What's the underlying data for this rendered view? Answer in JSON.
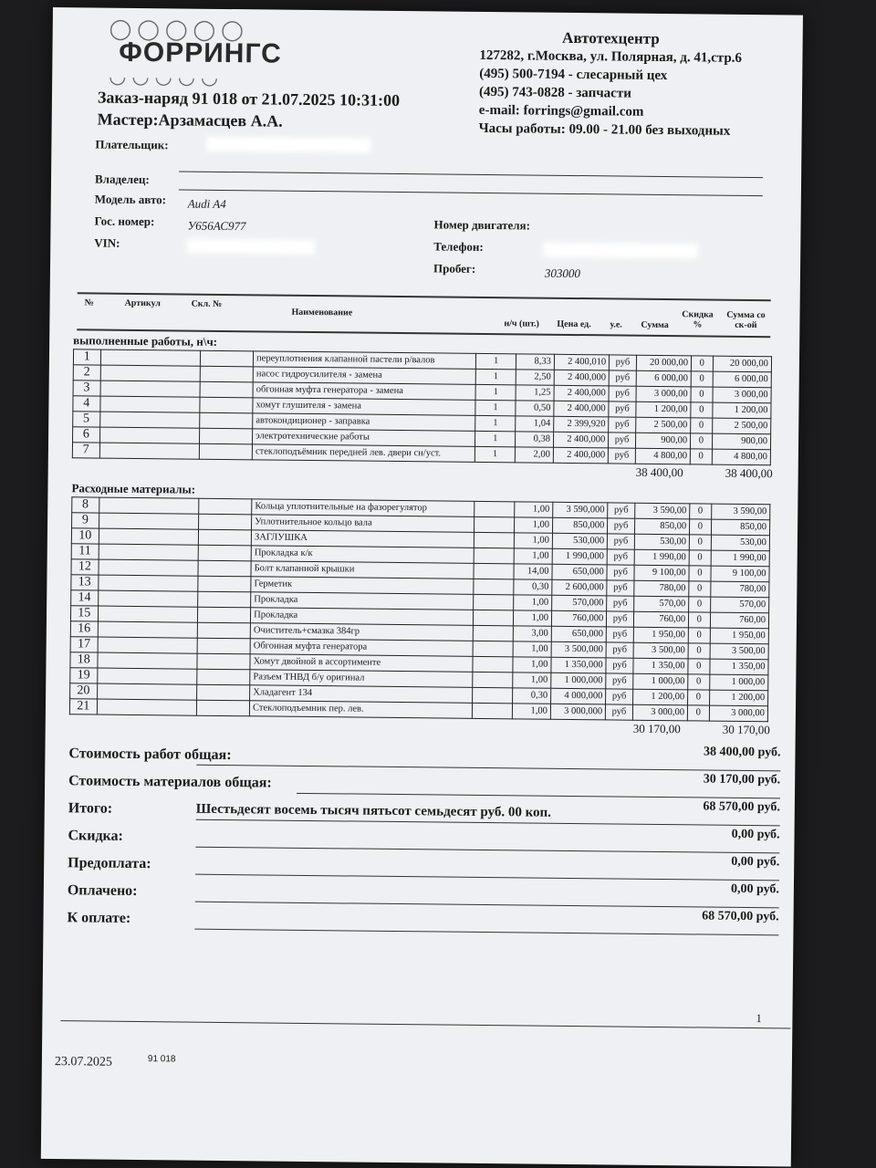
{
  "logo": "ФОРРИНГС",
  "company": {
    "name": "Автотехцентр",
    "address": "127282, г.Москва, ул. Полярная, д. 41,стр.6",
    "phone1": "(495) 500-7194 - слесарный цех",
    "phone2": "(495) 743-0828 - запчасти",
    "email": "e-mail: forrings@gmail.com",
    "hours": "Часы работы: 09.00 - 21.00 без выходных"
  },
  "order": {
    "title": "Заказ-наряд 91 018 от 21.07.2025  10:31:00",
    "master": "Мастер:Арзамасцев А.А."
  },
  "fields": {
    "payer_label": "Плательщик:",
    "owner_label": "Владелец:",
    "model_label": "Модель авто:",
    "model": "Audi A4",
    "plate_label": "Гос. номер:",
    "plate": "У656АС977",
    "vin_label": "VIN:",
    "engine_label": "Номер двигателя:",
    "phone_label": "Телефон:",
    "mileage_label": "Пробег:",
    "mileage": "303000"
  },
  "headers": {
    "num": "№",
    "article": "Артикул",
    "stock": "Скл. №",
    "name": "Наименование",
    "qty": "н/ч (шт.)",
    "price": "Цена ед.",
    "unit": "у.е.",
    "sum": "Сумма",
    "discount": "Скидка %",
    "sum_disc": "Сумма со ск-ой"
  },
  "works": {
    "title": "выполненные работы, н\\ч:",
    "rows": [
      {
        "n": "1",
        "name": "переуплотнения клапанной пастели р/валов",
        "k": "1",
        "qty": "8,33",
        "price": "2 400,010",
        "unit": "руб",
        "sum": "20 000,00",
        "disc": "0",
        "total": "20 000,00"
      },
      {
        "n": "2",
        "name": "насос гидроусилителя - замена",
        "k": "1",
        "qty": "2,50",
        "price": "2 400,000",
        "unit": "руб",
        "sum": "6 000,00",
        "disc": "0",
        "total": "6 000,00"
      },
      {
        "n": "3",
        "name": "обгонная муфта генератора - замена",
        "k": "1",
        "qty": "1,25",
        "price": "2 400,000",
        "unit": "руб",
        "sum": "3 000,00",
        "disc": "0",
        "total": "3 000,00"
      },
      {
        "n": "4",
        "name": "хомут глушителя - замена",
        "k": "1",
        "qty": "0,50",
        "price": "2 400,000",
        "unit": "руб",
        "sum": "1 200,00",
        "disc": "0",
        "total": "1 200,00"
      },
      {
        "n": "5",
        "name": "автокондиционер - заправка",
        "k": "1",
        "qty": "1,04",
        "price": "2 399,920",
        "unit": "руб",
        "sum": "2 500,00",
        "disc": "0",
        "total": "2 500,00"
      },
      {
        "n": "6",
        "name": "электротехнические работы",
        "k": "1",
        "qty": "0,38",
        "price": "2 400,000",
        "unit": "руб",
        "sum": "900,00",
        "disc": "0",
        "total": "900,00"
      },
      {
        "n": "7",
        "name": "стеклоподъёмник передней лев. двери сн/уст.",
        "k": "1",
        "qty": "2,00",
        "price": "2 400,000",
        "unit": "руб",
        "sum": "4 800,00",
        "disc": "0",
        "total": "4 800,00"
      }
    ],
    "total_sum": "38 400,00",
    "total_disc": "38 400,00"
  },
  "materials": {
    "title": "Расходные материалы:",
    "rows": [
      {
        "n": "8",
        "name": "Кольца уплотнительные на фазорегулятор",
        "qty": "1,00",
        "price": "3 590,000",
        "unit": "руб",
        "sum": "3 590,00",
        "disc": "0",
        "total": "3 590,00"
      },
      {
        "n": "9",
        "name": "Уплотнительное кольцо вала",
        "qty": "1,00",
        "price": "850,000",
        "unit": "руб",
        "sum": "850,00",
        "disc": "0",
        "total": "850,00"
      },
      {
        "n": "10",
        "name": "ЗАГЛУШКА",
        "qty": "1,00",
        "price": "530,000",
        "unit": "руб",
        "sum": "530,00",
        "disc": "0",
        "total": "530,00"
      },
      {
        "n": "11",
        "name": "Прокладка к/к",
        "qty": "1,00",
        "price": "1 990,000",
        "unit": "руб",
        "sum": "1 990,00",
        "disc": "0",
        "total": "1 990,00"
      },
      {
        "n": "12",
        "name": "Болт клапанной крышки",
        "qty": "14,00",
        "price": "650,000",
        "unit": "руб",
        "sum": "9 100,00",
        "disc": "0",
        "total": "9 100,00"
      },
      {
        "n": "13",
        "name": "Герметик",
        "qty": "0,30",
        "price": "2 600,000",
        "unit": "руб",
        "sum": "780,00",
        "disc": "0",
        "total": "780,00"
      },
      {
        "n": "14",
        "name": "Прокладка",
        "qty": "1,00",
        "price": "570,000",
        "unit": "руб",
        "sum": "570,00",
        "disc": "0",
        "total": "570,00"
      },
      {
        "n": "15",
        "name": "Прокладка",
        "qty": "1,00",
        "price": "760,000",
        "unit": "руб",
        "sum": "760,00",
        "disc": "0",
        "total": "760,00"
      },
      {
        "n": "16",
        "name": "Очиститель+смазка 384гр",
        "qty": "3,00",
        "price": "650,000",
        "unit": "руб",
        "sum": "1 950,00",
        "disc": "0",
        "total": "1 950,00"
      },
      {
        "n": "17",
        "name": "Обгонная муфта генератора",
        "qty": "1,00",
        "price": "3 500,000",
        "unit": "руб",
        "sum": "3 500,00",
        "disc": "0",
        "total": "3 500,00"
      },
      {
        "n": "18",
        "name": "Хомут двойной в ассортименте",
        "qty": "1,00",
        "price": "1 350,000",
        "unit": "руб",
        "sum": "1 350,00",
        "disc": "0",
        "total": "1 350,00"
      },
      {
        "n": "19",
        "name": "Разъем ТНВД б/у оригинал",
        "qty": "1,00",
        "price": "1 000,000",
        "unit": "руб",
        "sum": "1 000,00",
        "disc": "0",
        "total": "1 000,00"
      },
      {
        "n": "20",
        "name": "Хладагент 134",
        "qty": "0,30",
        "price": "4 000,000",
        "unit": "руб",
        "sum": "1 200,00",
        "disc": "0",
        "total": "1 200,00"
      },
      {
        "n": "21",
        "name": "Стеклоподъемник пер. лев.",
        "qty": "1,00",
        "price": "3 000,000",
        "unit": "руб",
        "sum": "3 000,00",
        "disc": "0",
        "total": "3 000,00"
      }
    ],
    "total_sum": "30 170,00",
    "total_disc": "30 170,00"
  },
  "summary": [
    {
      "label": "Стоимость работ общая:",
      "value": "38 400,00 руб."
    },
    {
      "label": "Стоимость материалов общая:",
      "value": "30 170,00 руб."
    },
    {
      "label": "Итого:",
      "value": "68 570,00 руб.",
      "words": "Шестьдесят восемь тысяч пятьсот семьдесят  руб. 00 коп."
    },
    {
      "label": "Скидка:",
      "value": "0,00 руб."
    },
    {
      "label": "Предоплата:",
      "value": "0,00 руб."
    },
    {
      "label": "Оплачено:",
      "value": "0,00 руб."
    },
    {
      "label": "К оплате:",
      "value": "68 570,00 руб."
    }
  ],
  "footer": {
    "page": "1",
    "date": "23.07.2025",
    "number": "91 018"
  }
}
